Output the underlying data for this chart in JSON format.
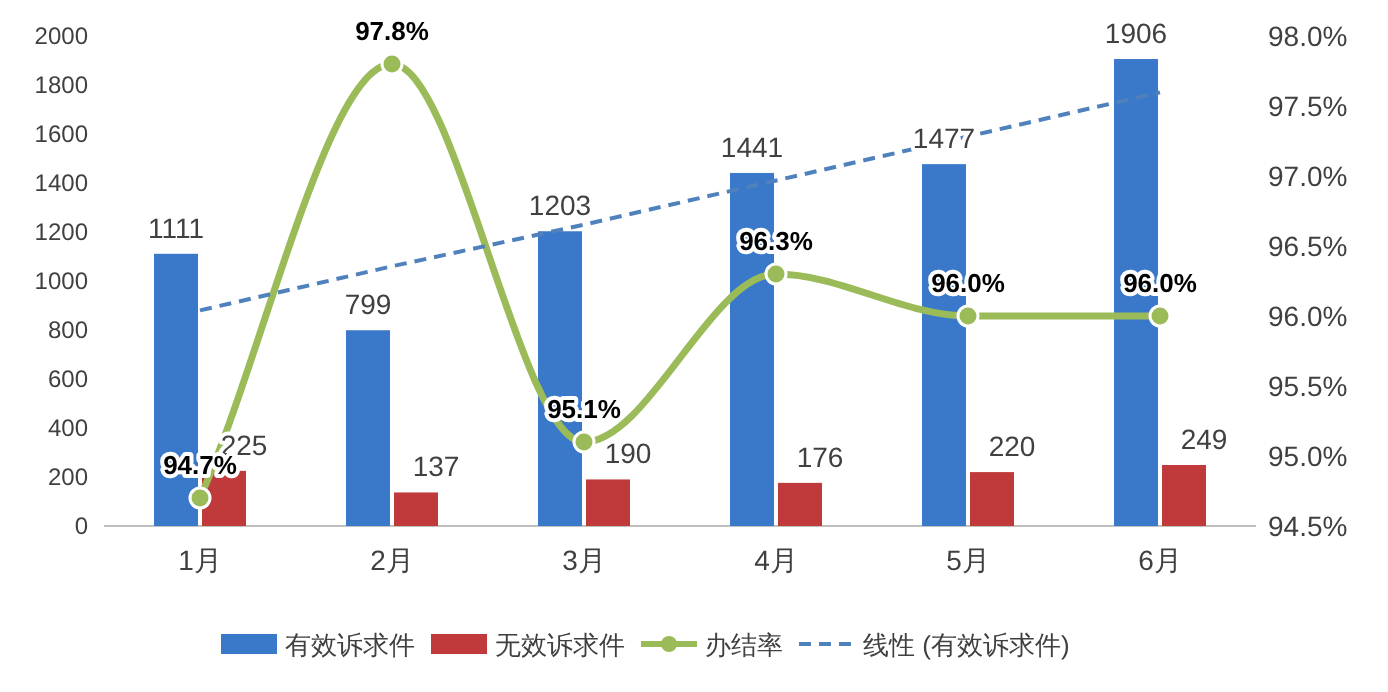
{
  "chart_data": {
    "type": "bar",
    "categories": [
      "1月",
      "2月",
      "3月",
      "4月",
      "5月",
      "6月"
    ],
    "series": [
      {
        "name": "有效诉求件",
        "color": "#3a78c9",
        "values": [
          1111,
          799,
          1203,
          1441,
          1477,
          1906
        ],
        "value_labels": [
          "1111",
          "799",
          "1203",
          "1441",
          "1477",
          "1906"
        ]
      },
      {
        "name": "无效诉求件",
        "color": "#c0393b",
        "values": [
          225,
          137,
          190,
          176,
          220,
          249
        ],
        "value_labels": [
          "225",
          "137",
          "190",
          "176",
          "220",
          "249"
        ]
      },
      {
        "name": "办结率",
        "type": "line",
        "axis": "y2",
        "color": "#9bbb59",
        "marker": "circle",
        "line_style": "solid",
        "values": [
          94.7,
          97.8,
          95.1,
          96.3,
          96.0,
          96.0
        ],
        "value_labels": [
          "94.7%",
          "97.8%",
          "95.1%",
          "96.3%",
          "96.0%",
          "96.0%"
        ]
      },
      {
        "name": "线性 (有效诉求件)",
        "type": "line",
        "color": "#4f81bd",
        "marker": "none",
        "line_style": "dashed",
        "values": [
          880,
          1060,
          1230,
          1410,
          1590,
          1770
        ]
      }
    ],
    "ylim": [
      0,
      2000
    ],
    "yticks": [
      0,
      200,
      400,
      600,
      800,
      1000,
      1200,
      1400,
      1600,
      1800,
      2000
    ],
    "y2lim": [
      94.5,
      98.0
    ],
    "y2ticks": [
      {
        "value": 94.5,
        "label": "94.5%"
      },
      {
        "value": 95.0,
        "label": "95.0%"
      },
      {
        "value": 95.5,
        "label": "95.5%"
      },
      {
        "value": 96.0,
        "label": "96.0%"
      },
      {
        "value": 96.5,
        "label": "96.5%"
      },
      {
        "value": 97.0,
        "label": "97.0%"
      },
      {
        "value": 97.5,
        "label": "97.5%"
      },
      {
        "value": 98.0,
        "label": "98.0%"
      }
    ],
    "grid": false,
    "legend": "bottom"
  }
}
